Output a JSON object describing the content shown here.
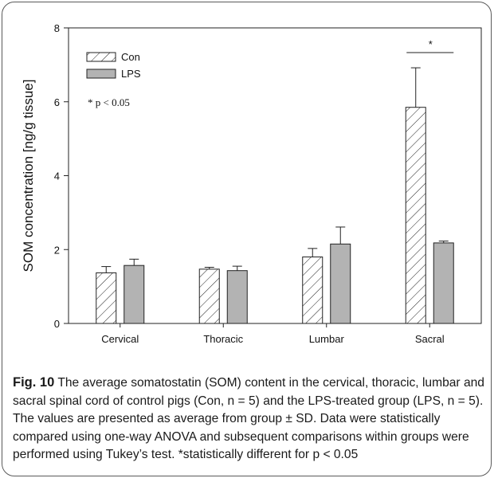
{
  "chart_data": {
    "type": "bar",
    "ylabel": "SOM  concentration [ng/g tissue]",
    "xlabel": "",
    "ylim": [
      0,
      8
    ],
    "yticks": [
      "0",
      "2",
      "4",
      "6",
      "8"
    ],
    "categories": [
      "Cervical",
      "Thoracic",
      "Lumbar",
      "Sacral"
    ],
    "series": [
      {
        "name": "Con",
        "pattern": "hatched",
        "color": "#ffffff",
        "values": [
          1.37,
          1.47,
          1.8,
          5.85
        ],
        "sd": [
          0.17,
          0.05,
          0.23,
          1.07
        ]
      },
      {
        "name": "LPS",
        "pattern": "solid",
        "color": "#b3b3b3",
        "values": [
          1.57,
          1.43,
          2.15,
          2.18
        ],
        "sd": [
          0.17,
          0.12,
          0.46,
          0.05
        ]
      }
    ],
    "legend_position": "top-left",
    "note": "* p < 0.05",
    "significance": {
      "category": "Sacral",
      "label": "*"
    }
  },
  "caption": {
    "label": "Fig. 10",
    "text": "The average somatostatin (SOM) content in the cervical, thoracic, lumbar and sacral spinal cord of control pigs (Con, n = 5) and the LPS-treated group (LPS, n = 5). The values are presented as average from group ± SD. Data were statistically compared using one-way ANOVA and subsequent comparisons within groups were performed using Tukey’s test. *statistically different for p < 0.05"
  }
}
